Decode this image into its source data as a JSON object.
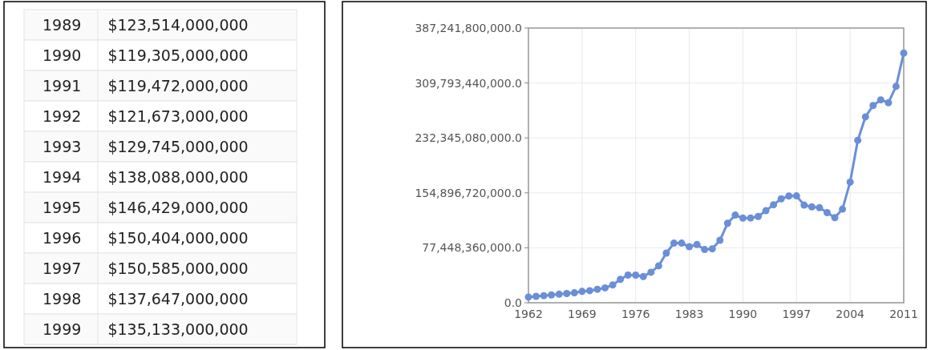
{
  "chart_data": [
    {
      "type": "other",
      "annotations": [
        "1989 $123,514,000,000",
        "1990 $119,305,000,000",
        "1991 $119,472,000,000",
        "1992 $121,673,000,000",
        "1993 $129,745,000,000",
        "1994 $138,088,000,000",
        "1995 $146,429,000,000",
        "1996 $150,404,000,000",
        "1997 $150,585,000,000",
        "1998 $137,647,000,000",
        "1999 $135,133,000,000"
      ]
    },
    {
      "type": "line",
      "x": [
        1962,
        1963,
        1964,
        1965,
        1966,
        1967,
        1968,
        1969,
        1970,
        1971,
        1972,
        1973,
        1974,
        1975,
        1976,
        1977,
        1978,
        1979,
        1980,
        1981,
        1982,
        1983,
        1984,
        1985,
        1986,
        1987,
        1988,
        1989,
        1990,
        1991,
        1992,
        1993,
        1994,
        1995,
        1996,
        1997,
        1998,
        1999,
        2000,
        2001,
        2002,
        2003,
        2004,
        2005,
        2006,
        2007,
        2008,
        2009,
        2010,
        2011
      ],
      "series": [
        {
          "color": "#6a8fd8",
          "values": [
            8000000000,
            9000000000,
            10000000000,
            11000000000,
            12000000000,
            13000000000,
            14000000000,
            16000000000,
            17000000000,
            19000000000,
            21000000000,
            25000000000,
            33000000000,
            39000000000,
            39000000000,
            37000000000,
            43000000000,
            52000000000,
            70000000000,
            84000000000,
            84000000000,
            79000000000,
            82000000000,
            75000000000,
            76000000000,
            88000000000,
            112000000000,
            123514000000,
            119305000000,
            119472000000,
            121673000000,
            129745000000,
            138088000000,
            146429000000,
            150404000000,
            150585000000,
            137647000000,
            135133000000,
            134000000000,
            127000000000,
            120000000000,
            132000000000,
            170000000000,
            229000000000,
            262000000000,
            278000000000,
            286000000000,
            282000000000,
            305000000000,
            352000000000
          ]
        }
      ],
      "xlim": [
        1962,
        2011
      ],
      "xticks": [
        1962,
        1969,
        1976,
        1983,
        1990,
        1997,
        2004,
        2011
      ],
      "ylim": [
        0,
        387241800000
      ],
      "yticks": [
        {
          "value": 0,
          "label": "0.0"
        },
        {
          "value": 77448360000,
          "label": "77,448,360,000.0"
        },
        {
          "value": 154896720000,
          "label": "154,896,720,000.0"
        },
        {
          "value": 232345080000,
          "label": "232,345,080,000.0"
        },
        {
          "value": 309793440000,
          "label": "309,793,440,000.0"
        },
        {
          "value": 387241800000,
          "label": "387,241,800,000.0"
        }
      ],
      "grid": true,
      "marker": "circle",
      "line_style": "solid"
    }
  ]
}
